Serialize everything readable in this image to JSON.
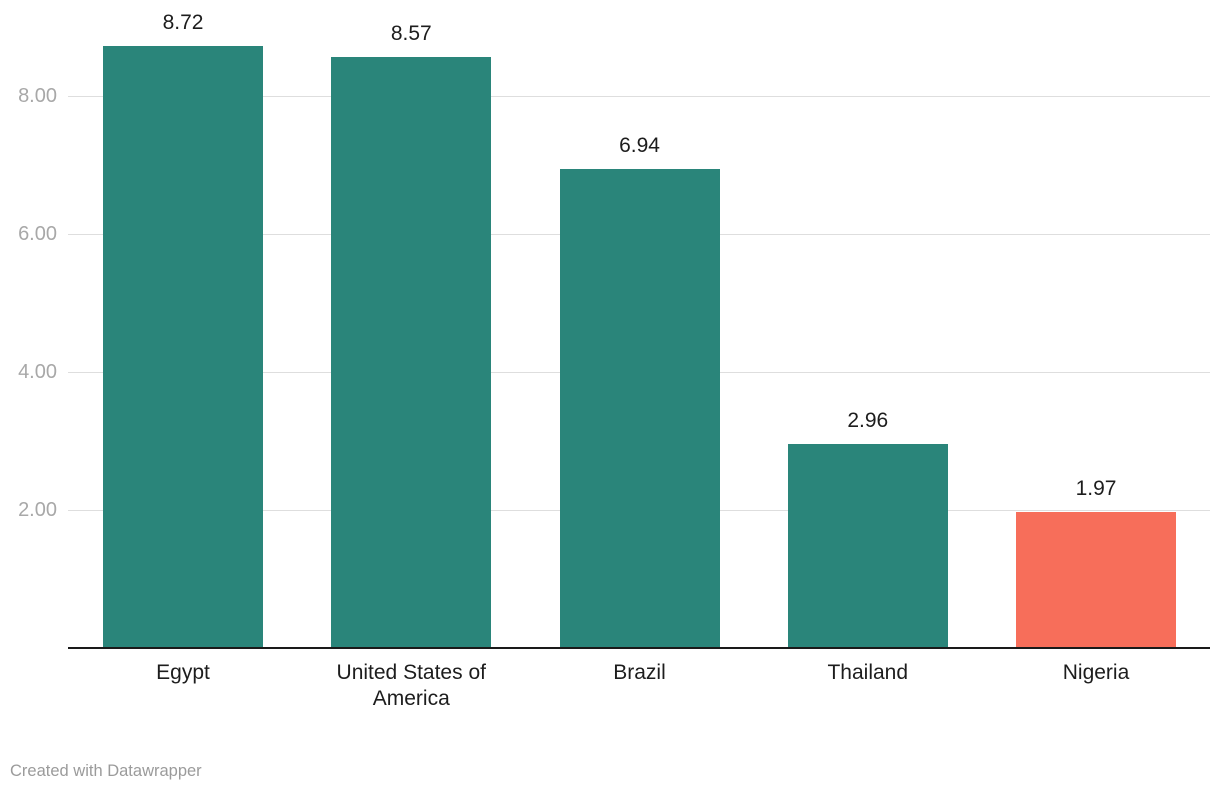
{
  "chart_data": {
    "type": "bar",
    "title": "",
    "xlabel": "",
    "ylabel": "",
    "categories": [
      "Egypt",
      "United States of America",
      "Brazil",
      "Thailand",
      "Nigeria"
    ],
    "values": [
      8.72,
      8.57,
      6.94,
      2.96,
      1.97
    ],
    "value_labels": [
      "8.72",
      "8.57",
      "6.94",
      "2.96",
      "1.97"
    ],
    "bar_colors": [
      "#2a857a",
      "#2a857a",
      "#2a857a",
      "#2a857a",
      "#f76e5a"
    ],
    "highlight_category": "Nigeria",
    "y_ticks": [
      {
        "value": 2,
        "label": "2.00"
      },
      {
        "value": 4,
        "label": "4.00"
      },
      {
        "value": 6,
        "label": "6.00"
      },
      {
        "value": 8,
        "label": "8.00"
      }
    ],
    "ylim": [
      0,
      9.4
    ],
    "grid": true,
    "legend": false
  },
  "colors": {
    "bar_default": "#2a857a",
    "bar_highlight": "#f76e5a",
    "gridline": "#dedede",
    "axis_line": "#1a1a1a",
    "tick_text": "#a8a8a8",
    "label_text": "#1d1d1d",
    "credit_text": "#9b9b9b"
  },
  "footer": {
    "credit": "Created with Datawrapper"
  }
}
